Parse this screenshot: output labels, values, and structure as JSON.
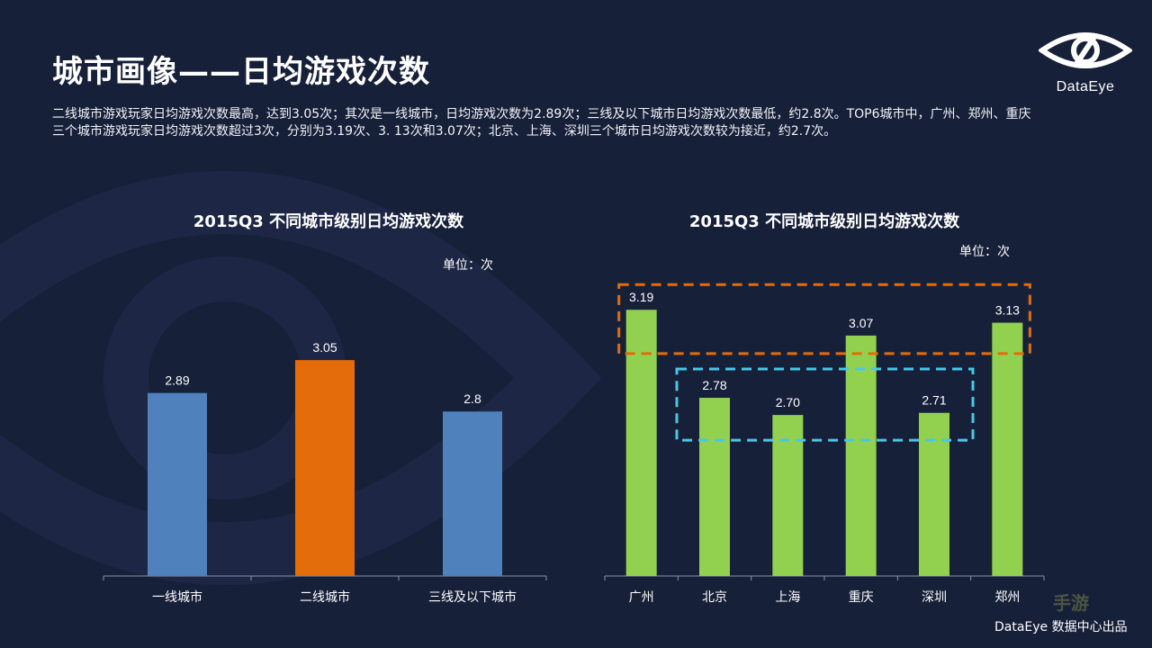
{
  "title": "城市画像——日均游戏次数",
  "description": "二线城市游戏玩家日均游戏次数最高，达到3.05次；其次是一线城市，日均游戏次数为2.89次；三线及以下城市日均游戏次数最低，约2.8次。TOP6城市中，广州、郑州、重庆三个城市游戏玩家日均游戏次数超过3次，分别为3.19次、3. 13次和3.07次；北京、上海、深圳三个城市日均游戏次数较为接近，约2.7次。",
  "logo": {
    "text": "DataEye"
  },
  "footer": "DataEye 数据中心出品",
  "watermark": "手游",
  "colors": {
    "background": "#172039",
    "tier_blue": "#4f81bd",
    "tier_orange": "#e46c0a",
    "city_green": "#92d050",
    "highlight_orange": "#e46c0a",
    "highlight_cyan": "#4bc6e8"
  },
  "chart_data": [
    {
      "type": "bar",
      "title": "2015Q3 不同城市级别日均游戏次数",
      "unit": "单位：次",
      "categories": [
        "一线城市",
        "二线城市",
        "三线及以下城市"
      ],
      "values": [
        2.89,
        3.05,
        2.8
      ],
      "labels": [
        "2.89",
        "3.05",
        "2.8"
      ],
      "bar_colors": [
        "#4f81bd",
        "#e46c0a",
        "#4f81bd"
      ],
      "ylim": [
        2.0,
        3.3
      ],
      "xlabel": "",
      "ylabel": "",
      "grid": false
    },
    {
      "type": "bar",
      "title": "2015Q3 不同城市级别日均游戏次数",
      "unit": "单位：次",
      "categories": [
        "广州",
        "北京",
        "上海",
        "重庆",
        "深圳",
        "郑州"
      ],
      "values": [
        3.19,
        2.78,
        2.7,
        3.07,
        2.71,
        3.13
      ],
      "labels": [
        "3.19",
        "2.78",
        "2.70",
        "3.07",
        "2.71",
        "3.13"
      ],
      "bar_color": "#92d050",
      "ylim": [
        1.95,
        3.3
      ],
      "highlights": [
        {
          "group": "over 3 times",
          "categories": [
            "广州",
            "重庆",
            "郑州"
          ],
          "color": "#e46c0a"
        },
        {
          "group": "about 2.7 times",
          "categories": [
            "北京",
            "上海",
            "深圳"
          ],
          "color": "#4bc6e8"
        }
      ],
      "xlabel": "",
      "ylabel": "",
      "grid": false
    }
  ]
}
